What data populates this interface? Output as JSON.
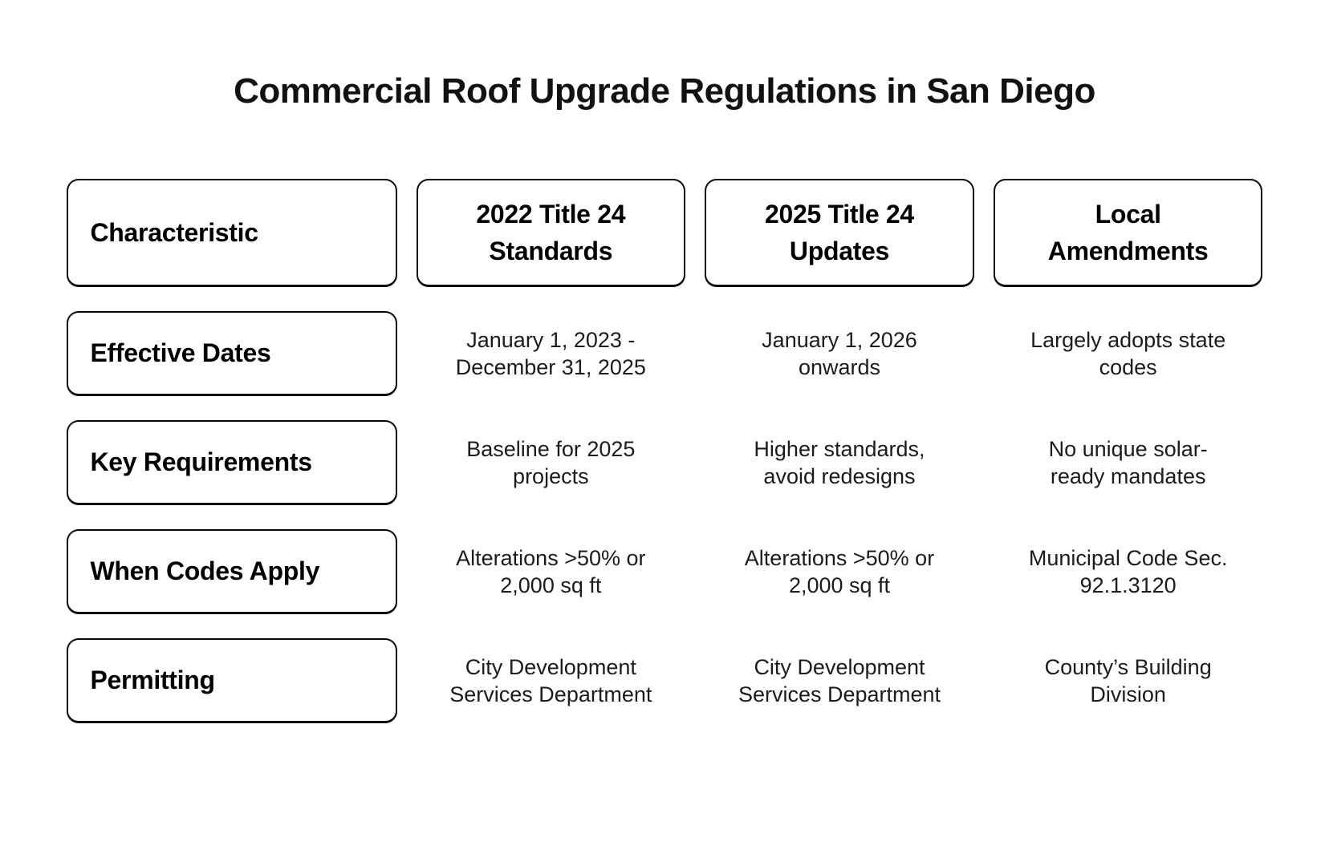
{
  "title": "Commercial Roof Upgrade Regulations in San Diego",
  "table": {
    "columns": [
      {
        "label": "Characteristic"
      },
      {
        "label": "2022 Title 24\nStandards"
      },
      {
        "label": "2025 Title 24\nUpdates"
      },
      {
        "label": "Local\nAmendments"
      }
    ],
    "rows": [
      {
        "label": "Effective Dates",
        "cells": [
          "January 1, 2023 -\nDecember 31, 2025",
          "January 1, 2026\nonwards",
          "Largely adopts state\ncodes"
        ]
      },
      {
        "label": "Key Requirements",
        "cells": [
          "Baseline for 2025\nprojects",
          "Higher standards,\navoid redesigns",
          "No unique solar-\nready mandates"
        ]
      },
      {
        "label": "When Codes Apply",
        "cells": [
          "Alterations >50% or\n2,000 sq ft",
          "Alterations >50% or\n2,000 sq ft",
          "Municipal Code Sec.\n92.1.3120"
        ]
      },
      {
        "label": "Permitting",
        "cells": [
          "City Development\nServices Department",
          "City Development\nServices Department",
          "County’s Building\nDivision"
        ]
      }
    ]
  },
  "colors": {
    "background": "#ffffff",
    "border": "#0a0a0a",
    "title_text": "#111111",
    "label_text": "#000000",
    "cell_text": "#1c1c1c"
  }
}
